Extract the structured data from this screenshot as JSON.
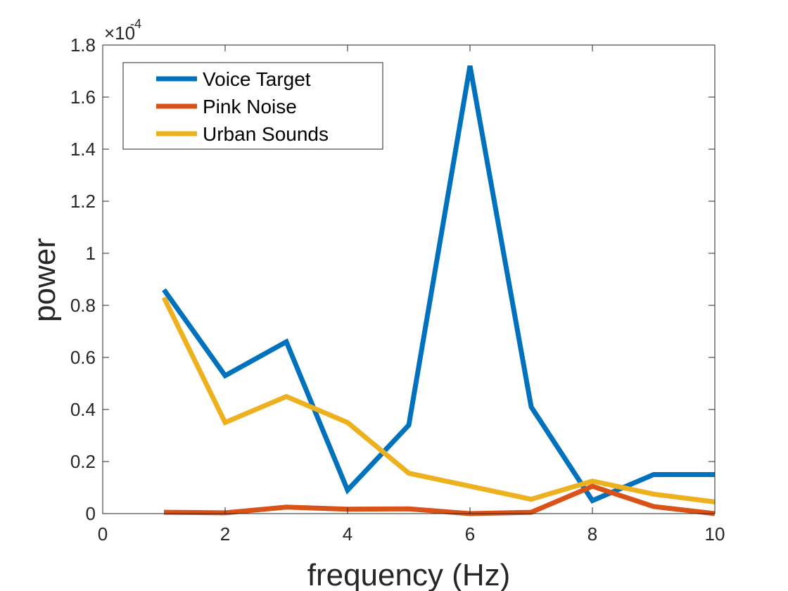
{
  "chart_data": {
    "type": "line",
    "xlabel": "frequency (Hz)",
    "ylabel": "power",
    "xlim": [
      0,
      10
    ],
    "ylim": [
      0,
      1.8
    ],
    "x_ticks": [
      "0",
      "2",
      "4",
      "6",
      "8",
      "10"
    ],
    "y_ticks": [
      "0",
      "0.2",
      "0.4",
      "0.6",
      "0.8",
      "1",
      "1.2",
      "1.4",
      "1.6",
      "1.8"
    ],
    "y_multiplier_base": "×10",
    "y_multiplier_exponent": "-4",
    "grid": false,
    "legend_position": "top-left",
    "x": [
      1,
      2,
      3,
      4,
      5,
      6,
      7,
      8,
      9,
      10
    ],
    "series": [
      {
        "name": "Voice Target",
        "color": "#0072BD",
        "values": [
          0.86,
          0.53,
          0.66,
          0.09,
          0.34,
          1.72,
          0.41,
          0.05,
          0.15,
          0.15
        ]
      },
      {
        "name": "Pink Noise",
        "color": "#D95319",
        "values": [
          0.005,
          0.003,
          0.025,
          0.017,
          0.018,
          0.0,
          0.005,
          0.105,
          0.027,
          0.0
        ]
      },
      {
        "name": "Urban Sounds",
        "color": "#EDB120",
        "values": [
          0.83,
          0.35,
          0.45,
          0.35,
          0.155,
          0.105,
          0.055,
          0.125,
          0.075,
          0.045
        ]
      }
    ]
  }
}
